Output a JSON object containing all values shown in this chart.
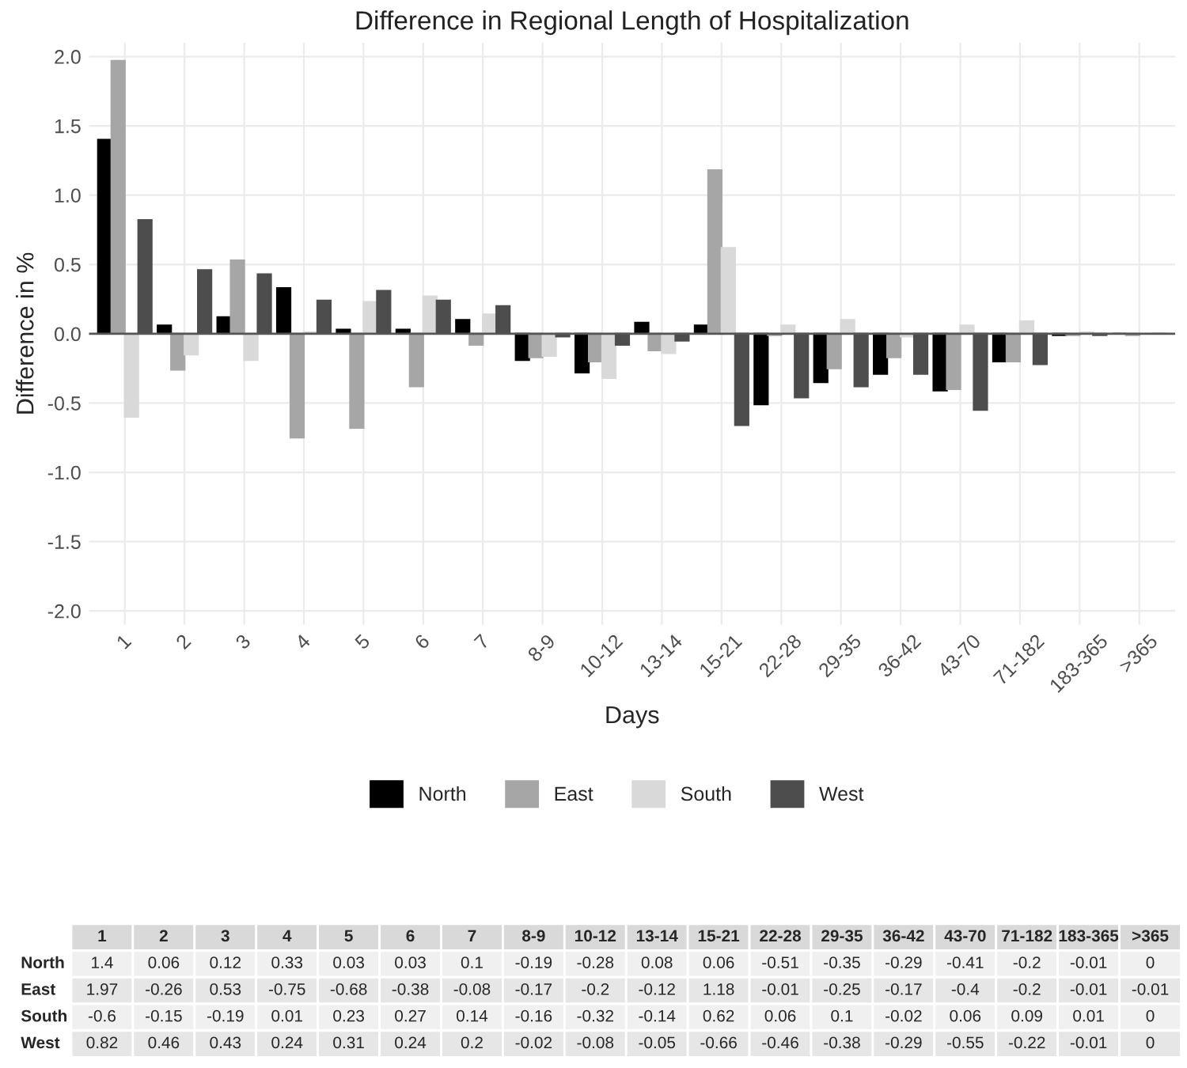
{
  "chart_data": {
    "type": "bar",
    "title": "Difference in Regional Length of Hospitalization",
    "xlabel": "Days",
    "ylabel": "Difference in %",
    "categories": [
      "1",
      "2",
      "3",
      "4",
      "5",
      "6",
      "7",
      "8-9",
      "10-12",
      "13-14",
      "15-21",
      "22-28",
      "29-35",
      "36-42",
      "43-70",
      "71-182",
      "183-365",
      ">365"
    ],
    "series": [
      {
        "name": "North",
        "color": "#000000",
        "values": [
          1.4,
          0.06,
          0.12,
          0.33,
          0.03,
          0.03,
          0.1,
          -0.19,
          -0.28,
          0.08,
          0.06,
          -0.51,
          -0.35,
          -0.29,
          -0.41,
          -0.2,
          -0.01,
          0
        ]
      },
      {
        "name": "East",
        "color": "#a6a6a6",
        "values": [
          1.97,
          -0.26,
          0.53,
          -0.75,
          -0.68,
          -0.38,
          -0.08,
          -0.17,
          -0.2,
          -0.12,
          1.18,
          -0.01,
          -0.25,
          -0.17,
          -0.4,
          -0.2,
          -0.01,
          -0.01
        ]
      },
      {
        "name": "South",
        "color": "#d9d9d9",
        "values": [
          -0.6,
          -0.15,
          -0.19,
          0.01,
          0.23,
          0.27,
          0.14,
          -0.16,
          -0.32,
          -0.14,
          0.62,
          0.06,
          0.1,
          -0.02,
          0.06,
          0.09,
          0.01,
          0
        ]
      },
      {
        "name": "West",
        "color": "#4d4d4d",
        "values": [
          0.82,
          0.46,
          0.43,
          0.24,
          0.31,
          0.24,
          0.2,
          -0.02,
          -0.08,
          -0.05,
          -0.66,
          -0.46,
          -0.38,
          -0.29,
          -0.55,
          -0.22,
          -0.01,
          0
        ]
      }
    ],
    "ylim": [
      -2.1,
      2.1
    ],
    "yticks": [
      {
        "value": -2,
        "label": "-2.0"
      },
      {
        "value": -1.5,
        "label": "-1.5"
      },
      {
        "value": -1,
        "label": "-1.0"
      },
      {
        "value": -0.5,
        "label": "-0.5"
      },
      {
        "value": 0,
        "label": "0.0"
      },
      {
        "value": 0.5,
        "label": "0.5"
      },
      {
        "value": 1,
        "label": "1.0"
      },
      {
        "value": 1.5,
        "label": "1.5"
      },
      {
        "value": 2,
        "label": "2.0"
      }
    ],
    "ref_lines": [
      {
        "axis": "y",
        "value": 0,
        "color": "#555555"
      }
    ],
    "grid": true,
    "legend": "bottom",
    "data_labels": true
  }
}
